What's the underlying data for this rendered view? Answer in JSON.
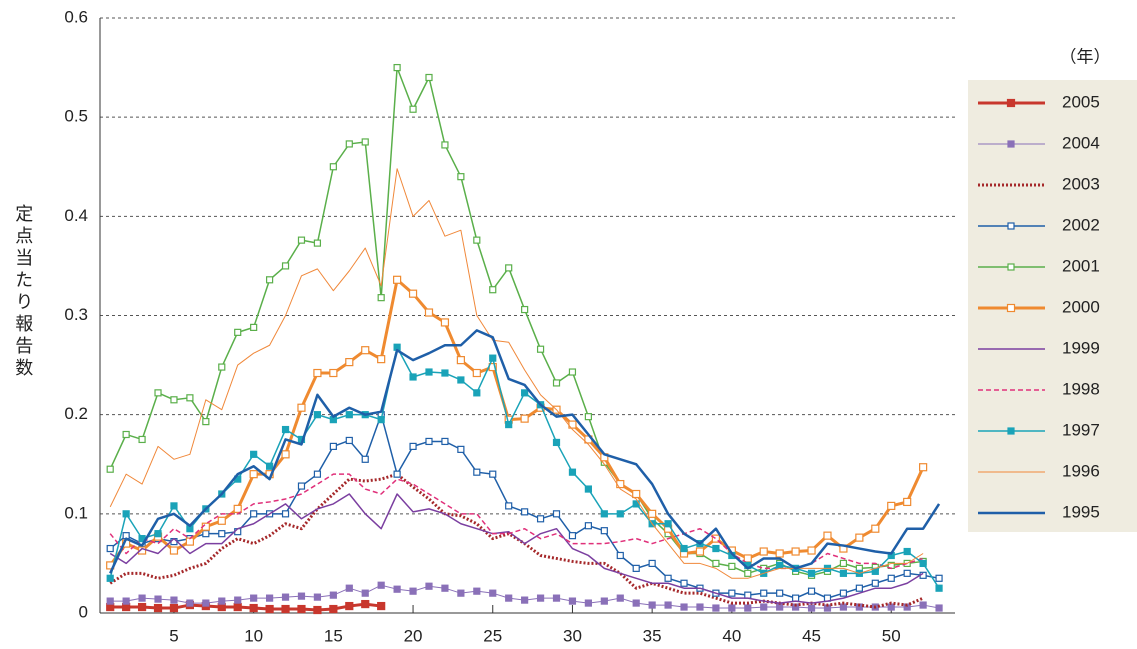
{
  "chart_data": {
    "type": "line",
    "ylabel": "定点当たり報告数",
    "legend_title": "（年）",
    "legend": "right",
    "grid": true,
    "xlim": [
      0.36,
      54
    ],
    "xticks": [
      5,
      10,
      15,
      20,
      25,
      30,
      35,
      40,
      45,
      50
    ],
    "ylim": [
      0,
      0.6
    ],
    "yticks": [
      0,
      0.1,
      0.2,
      0.3,
      0.4,
      0.5,
      0.6
    ],
    "x": [
      1,
      2,
      3,
      4,
      5,
      6,
      7,
      8,
      9,
      10,
      11,
      12,
      13,
      14,
      15,
      16,
      17,
      18,
      19,
      20,
      21,
      22,
      23,
      24,
      25,
      26,
      27,
      28,
      29,
      30,
      31,
      32,
      33,
      34,
      35,
      36,
      37,
      38,
      39,
      40,
      41,
      42,
      43,
      44,
      45,
      46,
      47,
      48,
      49,
      50,
      51,
      52,
      53
    ],
    "series": [
      {
        "name": "2005",
        "color": "#c8372d",
        "line_width": 3,
        "marker": "square-filled",
        "line_style": "solid",
        "values": [
          0.006,
          0.006,
          0.006,
          0.005,
          0.005,
          0.008,
          0.007,
          0.006,
          0.006,
          0.005,
          0.004,
          0.004,
          0.004,
          0.003,
          0.004,
          0.007,
          0.009,
          0.007,
          null,
          null,
          null,
          null,
          null,
          null,
          null,
          null,
          null,
          null,
          null,
          null,
          null,
          null,
          null,
          null,
          null,
          null,
          null,
          null,
          null,
          null,
          null,
          null,
          null,
          null,
          null,
          null,
          null,
          null,
          null,
          null,
          null,
          null,
          null
        ]
      },
      {
        "name": "2004",
        "color": "#8a70b8",
        "line_width": 1,
        "marker": "square-filled",
        "line_style": "solid",
        "values": [
          0.012,
          0.012,
          0.015,
          0.014,
          0.013,
          0.01,
          0.01,
          0.012,
          0.013,
          0.015,
          0.015,
          0.016,
          0.017,
          0.016,
          0.018,
          0.025,
          0.02,
          0.028,
          0.024,
          0.022,
          0.027,
          0.025,
          0.02,
          0.022,
          0.02,
          0.015,
          0.013,
          0.015,
          0.015,
          0.012,
          0.01,
          0.012,
          0.015,
          0.01,
          0.008,
          0.008,
          0.006,
          0.006,
          0.005,
          0.005,
          0.005,
          0.006,
          0.006,
          0.006,
          0.005,
          0.005,
          0.006,
          0.006,
          0.006,
          0.006,
          0.006,
          0.008,
          0.005
        ]
      },
      {
        "name": "2003",
        "color": "#a5282a",
        "line_width": 3,
        "marker": "none",
        "line_style": "dotted",
        "values": [
          0.03,
          0.04,
          0.04,
          0.035,
          0.038,
          0.045,
          0.05,
          0.065,
          0.075,
          0.07,
          0.078,
          0.09,
          0.085,
          0.105,
          0.12,
          0.135,
          0.133,
          0.135,
          0.14,
          0.127,
          0.115,
          0.1,
          0.098,
          0.09,
          0.075,
          0.08,
          0.07,
          0.058,
          0.055,
          0.052,
          0.05,
          0.05,
          0.04,
          0.025,
          0.03,
          0.025,
          0.02,
          0.02,
          0.015,
          0.01,
          0.01,
          0.012,
          0.01,
          0.008,
          0.01,
          0.008,
          0.01,
          0.008,
          0.006,
          0.01,
          0.008,
          0.015,
          null
        ]
      },
      {
        "name": "2002",
        "color": "#1f5fa8",
        "line_width": 1.5,
        "marker": "square-open",
        "line_style": "solid",
        "values": [
          0.065,
          0.078,
          0.07,
          0.075,
          0.072,
          0.075,
          0.08,
          0.08,
          0.082,
          0.1,
          0.1,
          0.1,
          0.128,
          0.14,
          0.168,
          0.174,
          0.155,
          0.2,
          0.14,
          0.168,
          0.173,
          0.173,
          0.165,
          0.142,
          0.14,
          0.108,
          0.102,
          0.095,
          0.1,
          0.078,
          0.088,
          0.083,
          0.058,
          0.045,
          0.05,
          0.035,
          0.03,
          0.025,
          0.02,
          0.02,
          0.018,
          0.02,
          0.02,
          0.015,
          0.022,
          0.015,
          0.02,
          0.025,
          0.03,
          0.035,
          0.04,
          0.038,
          0.035
        ]
      },
      {
        "name": "2001",
        "color": "#5aaf4a",
        "line_width": 1.5,
        "marker": "square-open",
        "line_style": "solid",
        "values": [
          0.145,
          0.18,
          0.175,
          0.222,
          0.215,
          0.217,
          0.193,
          0.248,
          0.283,
          0.288,
          0.336,
          0.35,
          0.376,
          0.373,
          0.45,
          0.473,
          0.475,
          0.318,
          0.55,
          0.508,
          0.54,
          0.472,
          0.44,
          0.376,
          0.326,
          0.348,
          0.306,
          0.266,
          0.232,
          0.243,
          0.198,
          0.152,
          0.13,
          0.12,
          0.095,
          0.08,
          0.06,
          0.06,
          0.05,
          0.047,
          0.04,
          0.045,
          0.05,
          0.042,
          0.038,
          0.042,
          0.05,
          0.045,
          0.046,
          0.048,
          0.05,
          0.052,
          null
        ]
      },
      {
        "name": "2000",
        "color": "#ef8a30",
        "line_width": 3,
        "marker": "square-open",
        "line_style": "solid",
        "values": [
          0.048,
          0.07,
          0.063,
          0.077,
          0.063,
          0.072,
          0.087,
          0.093,
          0.105,
          0.14,
          0.14,
          0.16,
          0.207,
          0.242,
          0.242,
          0.253,
          0.265,
          0.256,
          0.336,
          0.322,
          0.303,
          0.293,
          0.255,
          0.242,
          0.248,
          0.195,
          0.196,
          0.207,
          0.205,
          0.19,
          0.175,
          0.157,
          0.13,
          0.12,
          0.1,
          0.085,
          0.06,
          0.062,
          0.075,
          0.063,
          0.055,
          0.062,
          0.06,
          0.062,
          0.063,
          0.078,
          0.065,
          0.076,
          0.085,
          0.108,
          0.112,
          0.147,
          null
        ]
      },
      {
        "name": "1999",
        "color": "#7b3fa0",
        "line_width": 1.5,
        "marker": "none",
        "line_style": "solid",
        "values": [
          0.06,
          0.05,
          0.065,
          0.06,
          0.075,
          0.06,
          0.07,
          0.07,
          0.085,
          0.09,
          0.1,
          0.11,
          0.095,
          0.105,
          0.11,
          0.12,
          0.1,
          0.085,
          0.12,
          0.102,
          0.105,
          0.1,
          0.09,
          0.085,
          0.08,
          0.082,
          0.07,
          0.08,
          0.085,
          0.065,
          0.058,
          0.045,
          0.04,
          0.035,
          0.03,
          0.03,
          0.025,
          0.025,
          0.02,
          0.015,
          0.015,
          0.012,
          0.01,
          0.012,
          0.01,
          0.012,
          0.015,
          0.02,
          0.025,
          0.025,
          0.03,
          0.04,
          null
        ]
      },
      {
        "name": "1998",
        "color": "#e0307a",
        "line_width": 1.5,
        "marker": "none",
        "line_style": "dashed",
        "values": [
          0.08,
          0.06,
          0.075,
          0.07,
          0.085,
          0.075,
          0.09,
          0.1,
          0.1,
          0.11,
          0.112,
          0.115,
          0.12,
          0.13,
          0.14,
          0.14,
          0.125,
          0.12,
          0.135,
          0.13,
          0.12,
          0.11,
          0.1,
          0.1,
          0.08,
          0.08,
          0.085,
          0.075,
          0.08,
          0.07,
          0.07,
          0.07,
          0.072,
          0.075,
          0.07,
          0.075,
          0.08,
          0.085,
          0.075,
          0.06,
          0.05,
          0.045,
          0.045,
          0.045,
          0.05,
          0.06,
          0.055,
          0.05,
          0.05,
          0.045,
          0.05,
          0.055,
          null
        ]
      },
      {
        "name": "1997",
        "color": "#1aa3b8",
        "line_width": 1.5,
        "marker": "square-filled",
        "line_style": "solid",
        "values": [
          0.035,
          0.1,
          0.075,
          0.08,
          0.108,
          0.085,
          0.105,
          0.12,
          0.135,
          0.16,
          0.148,
          0.185,
          0.175,
          0.2,
          0.195,
          0.2,
          0.2,
          0.195,
          0.268,
          0.238,
          0.243,
          0.242,
          0.235,
          0.222,
          0.257,
          0.19,
          0.222,
          0.21,
          0.172,
          0.142,
          0.125,
          0.1,
          0.1,
          0.11,
          0.09,
          0.09,
          0.065,
          0.07,
          0.065,
          0.058,
          0.048,
          0.04,
          0.048,
          0.045,
          0.04,
          0.045,
          0.04,
          0.04,
          0.042,
          0.058,
          0.062,
          0.05,
          0.025
        ]
      },
      {
        "name": "1996",
        "color": "#f0883a",
        "line_width": 1,
        "marker": "none",
        "line_style": "solid",
        "values": [
          0.107,
          0.14,
          0.13,
          0.168,
          0.155,
          0.16,
          0.215,
          0.205,
          0.25,
          0.262,
          0.27,
          0.3,
          0.34,
          0.347,
          0.325,
          0.345,
          0.368,
          0.33,
          0.448,
          0.4,
          0.416,
          0.38,
          0.386,
          0.3,
          0.275,
          0.273,
          0.245,
          0.22,
          0.205,
          0.185,
          0.17,
          0.15,
          0.125,
          0.115,
          0.09,
          0.07,
          0.05,
          0.05,
          0.045,
          0.035,
          0.035,
          0.04,
          0.045,
          0.045,
          0.045,
          0.045,
          0.045,
          0.04,
          0.045,
          0.05,
          0.05,
          0.06,
          null
        ]
      },
      {
        "name": "1995",
        "color": "#1f5fa8",
        "line_width": 2.5,
        "marker": "none",
        "line_style": "solid",
        "values": [
          0.04,
          0.075,
          0.068,
          0.095,
          0.1,
          0.088,
          0.105,
          0.12,
          0.14,
          0.148,
          0.135,
          0.175,
          0.17,
          0.22,
          0.198,
          0.207,
          0.2,
          0.203,
          0.265,
          0.255,
          0.262,
          0.27,
          0.27,
          0.285,
          0.278,
          0.236,
          0.23,
          0.21,
          0.198,
          0.2,
          0.18,
          0.16,
          0.155,
          0.15,
          0.13,
          0.1,
          0.08,
          0.07,
          0.085,
          0.06,
          0.045,
          0.055,
          0.055,
          0.045,
          0.05,
          0.07,
          0.068,
          0.065,
          0.062,
          0.06,
          0.085,
          0.085,
          0.11
        ]
      }
    ]
  }
}
